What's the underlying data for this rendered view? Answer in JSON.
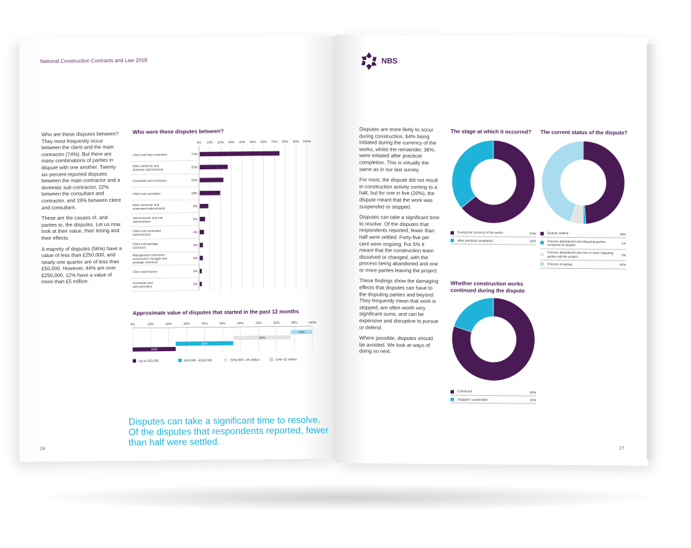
{
  "left_page": {
    "running_head": "National Construction Contracts and Law 2018",
    "page_number": "26",
    "paragraphs": [
      "Who are these disputes between? They most frequently occur between the client and the main contractor (74%). But there are many combinations of parties in dispute with one another. Twenty six percent reported disputes between the main contractor and a domestic sub-contractor, 22% between the consultant and contractor, and 19% between client and consultant.",
      "These are the causes of, and parties to, the disputes. Let us now look at their value, their timing and their effects.",
      "A majority of disputes (56%) have a value of less than £250,000, and nearly one quarter are of less than £50,000. However, 44% are over £250,000, 12% have a value of more than £5 million."
    ],
    "pull_quote": "Disputes can take a significant time to resolve. Of the disputes that respondents reported, fewer than half were settled."
  },
  "right_page": {
    "logo": "NBS",
    "page_number": "27",
    "paragraphs": [
      "Disputes are more likely to occur during construction, 64% being initiated during the currency of the works, whilst the remainder, 36%, were initiated after practical completion. This is virtually the same as in our last survey.",
      "For most, the dispute did not result in construction activity coming to a halt, but for one in five (20%), the dispute meant that the work was suspended or stopped.",
      "Disputes can take a significant time to resolve. Of the disputes that respondents reported, fewer than half were settled. Forty-five per cent were ongoing. For 5% it meant that the construction team dissolved or changed, with the process being abandoned and one or more parties leaving the project.",
      "These findings show the damaging effects that disputes can have to the disputing parties and beyond. They frequently mean that work is stopped, are often worth very significant sums, and can be expensive and disruptive to pursue or defend.",
      "Where possible, disputes should be avoided. We look at ways of doing so next."
    ]
  },
  "colors": {
    "purple": "#4a1a55",
    "cyan": "#1fb3d9",
    "light_grey": "#e3e3e3",
    "light_blue": "#a9dcef"
  },
  "chart_data": [
    {
      "type": "bar",
      "title": "Who were these disputes between?",
      "ticks": [
        "0%",
        "10%",
        "20%",
        "30%",
        "40%",
        "50%",
        "60%",
        "70%",
        "80%",
        "90%",
        "100%"
      ],
      "categories": [
        "Client and main contractor",
        "Main contractor and domestic subcontractor",
        "Consultant and contractor",
        "Client and consultant",
        "Main contractor and nominated subcontractor",
        "Subcontractor and sub subcontractor",
        "Client and nominated subcontractor",
        "Client and package contractor",
        "Management contractor/ construction manager and package contractor",
        "Client and insurers",
        "Consultant and sub-consultant"
      ],
      "values": [
        74,
        26,
        22,
        19,
        8,
        5,
        4,
        3,
        3,
        2,
        2
      ],
      "value_labels": [
        "74%",
        "26%",
        "22%",
        "19%",
        "8%",
        "5%",
        "4%",
        "3%",
        "3%",
        "2%",
        "2%"
      ],
      "xlim": [
        0,
        100
      ]
    },
    {
      "type": "bar",
      "title": "Approximate  value of disputes that started in the past 12 months",
      "ticks": [
        "0%",
        "10%",
        "20%",
        "30%",
        "40%",
        "50%",
        "60%",
        "70%",
        "80%",
        "90%",
        "100%"
      ],
      "series": [
        {
          "name": "Up to £50,000",
          "start": 0,
          "value": 24,
          "label": "24%"
        },
        {
          "name": "£50,000 - £250,000",
          "start": 24,
          "value": 32,
          "label": "32%"
        },
        {
          "name": "£250,000 - £5 million",
          "start": 56,
          "value": 32,
          "label": "32%"
        },
        {
          "name": "Over £5 million",
          "start": 88,
          "value": 12,
          "label": "12%"
        }
      ],
      "xlim": [
        0,
        100
      ]
    },
    {
      "type": "pie",
      "title": "The stage at which it occurred?",
      "slices": [
        {
          "label": "During the currency of the works",
          "value": 64,
          "value_label": "64%"
        },
        {
          "label": "After practical completion",
          "value": 36,
          "value_label": "36%"
        }
      ]
    },
    {
      "type": "pie",
      "title": "The current status of the dispute?",
      "slices": [
        {
          "label": "Dispute settled",
          "value": 49,
          "value_label": "49%"
        },
        {
          "label": "Process abandoned and disputing parties remained on project",
          "value": 1,
          "value_label": "1%"
        },
        {
          "label": "Process abandoned and one or more disputing parties left the project",
          "value": 5,
          "value_label": "5%"
        },
        {
          "label": "Process on-going",
          "value": 45,
          "value_label": "45%"
        }
      ]
    },
    {
      "type": "pie",
      "title": "Whether construction works continued during the dispute",
      "slices": [
        {
          "label": "Continued",
          "value": 80,
          "value_label": "80%"
        },
        {
          "label": "Stopped / suspended",
          "value": 20,
          "value_label": "20%"
        }
      ]
    }
  ]
}
